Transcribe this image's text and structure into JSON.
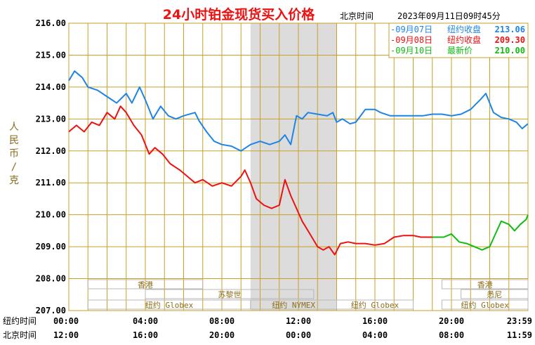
{
  "chart_data": {
    "type": "line",
    "title": "24小时铂金现货买入价格",
    "subtitle_location": "北京时间",
    "subtitle_timestamp": "2023年09月11日09时45分",
    "ylabel": "人民币/克",
    "ylim": [
      207.0,
      216.0
    ],
    "yticks": [
      "216.00",
      "215.00",
      "214.00",
      "213.00",
      "212.00",
      "211.00",
      "210.00",
      "209.00",
      "208.00",
      "207.00"
    ],
    "x_unit": "hours from New York 00:00 (0-24)",
    "xlim": [
      0,
      24
    ],
    "x_rows": [
      {
        "label": "纽约时间",
        "ticks": [
          "00:00",
          "04:00",
          "08:00",
          "12:00",
          "16:00",
          "20:00",
          "23:59"
        ]
      },
      {
        "label": "北京时间",
        "ticks": [
          "12:00",
          "16:00",
          "20:00",
          "00:00",
          "04:00",
          "08:00",
          "11:59"
        ]
      }
    ],
    "legend": [
      {
        "date": "-09月07日",
        "label": "纽约收盘",
        "value": "213.06",
        "color": "#1e84e8"
      },
      {
        "date": "-09月08日",
        "label": "纽约收盘",
        "value": "209.30",
        "color": "#ee1111"
      },
      {
        "date": "-09月10日",
        "label": "最新价",
        "value": "210.00",
        "color": "#11bb11"
      }
    ],
    "legend_position": "top-right",
    "grid": true,
    "shaded_region": {
      "x0": 9.5,
      "x1": 14.0,
      "color": "#dcdcdc"
    },
    "market_sessions": [
      {
        "name": "香港",
        "x0": 1.0,
        "x1": 7.0,
        "row": 1
      },
      {
        "name": "苏黎世",
        "x0": 4.0,
        "x1": 12.8,
        "row": 2
      },
      {
        "name": "纽约 Globex",
        "x0": 1.0,
        "x1": 9.5,
        "row": 3
      },
      {
        "name": "纽约 NYMEX",
        "x0": 9.5,
        "x1": 14.0,
        "row": 3
      },
      {
        "name": "纽约 Globex",
        "x0": 14.0,
        "x1": 18.0,
        "row": 3
      },
      {
        "name": "香港",
        "x0": 19.5,
        "x1": 24.0,
        "row": 1
      },
      {
        "name": "悉尼",
        "x0": 20.5,
        "x1": 24.0,
        "row": 2
      },
      {
        "name": "纽约 Globex",
        "x0": 19.5,
        "x1": 24.0,
        "row": 3
      }
    ],
    "series": [
      {
        "name": "09月07日",
        "color": "#1e84e8",
        "points": [
          [
            0,
            214.2
          ],
          [
            0.3,
            214.5
          ],
          [
            0.7,
            214.3
          ],
          [
            1,
            214.0
          ],
          [
            1.5,
            213.9
          ],
          [
            2,
            213.7
          ],
          [
            2.5,
            213.5
          ],
          [
            3,
            213.8
          ],
          [
            3.3,
            213.5
          ],
          [
            3.7,
            214.0
          ],
          [
            4,
            213.6
          ],
          [
            4.4,
            213.0
          ],
          [
            4.8,
            213.4
          ],
          [
            5.2,
            213.1
          ],
          [
            5.6,
            213.0
          ],
          [
            6,
            213.1
          ],
          [
            6.6,
            213.2
          ],
          [
            6.8,
            212.95
          ],
          [
            7.2,
            212.6
          ],
          [
            7.6,
            212.3
          ],
          [
            8,
            212.2
          ],
          [
            8.5,
            212.15
          ],
          [
            9,
            212.0
          ],
          [
            9.5,
            212.2
          ],
          [
            10,
            212.3
          ],
          [
            10.5,
            212.2
          ],
          [
            11,
            212.3
          ],
          [
            11.3,
            212.5
          ],
          [
            11.6,
            212.2
          ],
          [
            11.9,
            213.1
          ],
          [
            12.2,
            213.0
          ],
          [
            12.5,
            213.2
          ],
          [
            13,
            213.15
          ],
          [
            13.5,
            213.1
          ],
          [
            13.8,
            213.2
          ],
          [
            14,
            212.9
          ],
          [
            14.3,
            213.0
          ],
          [
            14.7,
            212.85
          ],
          [
            15,
            212.9
          ],
          [
            15.5,
            213.3
          ],
          [
            16,
            213.3
          ],
          [
            16.3,
            213.2
          ],
          [
            16.8,
            213.1
          ],
          [
            17.5,
            213.1
          ],
          [
            18,
            213.1
          ],
          [
            18.5,
            213.1
          ],
          [
            19,
            213.15
          ],
          [
            19.5,
            213.15
          ],
          [
            20,
            213.1
          ],
          [
            20.5,
            213.15
          ],
          [
            21,
            213.3
          ],
          [
            21.5,
            213.6
          ],
          [
            21.8,
            213.8
          ],
          [
            22.2,
            213.2
          ],
          [
            22.6,
            213.05
          ],
          [
            23,
            213.0
          ],
          [
            23.4,
            212.9
          ],
          [
            23.7,
            212.7
          ],
          [
            23.99,
            212.85
          ]
        ]
      },
      {
        "name": "09月08日",
        "color": "#ee1111",
        "points": [
          [
            0,
            212.6
          ],
          [
            0.4,
            212.8
          ],
          [
            0.8,
            212.6
          ],
          [
            1.2,
            212.9
          ],
          [
            1.6,
            212.8
          ],
          [
            2,
            213.2
          ],
          [
            2.4,
            213.0
          ],
          [
            2.7,
            213.4
          ],
          [
            3,
            213.2
          ],
          [
            3.4,
            212.8
          ],
          [
            3.8,
            212.5
          ],
          [
            4.2,
            211.9
          ],
          [
            4.5,
            212.1
          ],
          [
            4.9,
            211.9
          ],
          [
            5.3,
            211.6
          ],
          [
            5.8,
            211.4
          ],
          [
            6.2,
            211.2
          ],
          [
            6.6,
            211.0
          ],
          [
            7,
            211.1
          ],
          [
            7.5,
            210.9
          ],
          [
            8,
            211.0
          ],
          [
            8.5,
            210.9
          ],
          [
            9,
            211.2
          ],
          [
            9.2,
            211.4
          ],
          [
            9.5,
            211.0
          ],
          [
            9.8,
            210.5
          ],
          [
            10.2,
            210.3
          ],
          [
            10.6,
            210.2
          ],
          [
            11,
            210.3
          ],
          [
            11.3,
            211.1
          ],
          [
            11.6,
            210.6
          ],
          [
            11.9,
            210.2
          ],
          [
            12.2,
            209.8
          ],
          [
            12.6,
            209.4
          ],
          [
            13,
            209.0
          ],
          [
            13.3,
            208.9
          ],
          [
            13.6,
            209.0
          ],
          [
            13.9,
            208.75
          ],
          [
            14.2,
            209.1
          ],
          [
            14.6,
            209.15
          ],
          [
            15,
            209.1
          ],
          [
            15.5,
            209.1
          ],
          [
            16,
            209.05
          ],
          [
            16.5,
            209.1
          ],
          [
            17,
            209.3
          ],
          [
            17.5,
            209.35
          ],
          [
            18,
            209.35
          ],
          [
            18.4,
            209.3
          ],
          [
            19,
            209.3
          ]
        ]
      },
      {
        "name": "09月10日",
        "color": "#11bb11",
        "points": [
          [
            19,
            209.3
          ],
          [
            19.6,
            209.3
          ],
          [
            20,
            209.4
          ],
          [
            20.4,
            209.15
          ],
          [
            20.8,
            209.1
          ],
          [
            21.2,
            209.0
          ],
          [
            21.6,
            208.9
          ],
          [
            22,
            209.0
          ],
          [
            22.3,
            209.4
          ],
          [
            22.6,
            209.8
          ],
          [
            23,
            209.7
          ],
          [
            23.3,
            209.5
          ],
          [
            23.6,
            209.7
          ],
          [
            23.9,
            209.85
          ],
          [
            24,
            210.0
          ]
        ]
      }
    ]
  }
}
